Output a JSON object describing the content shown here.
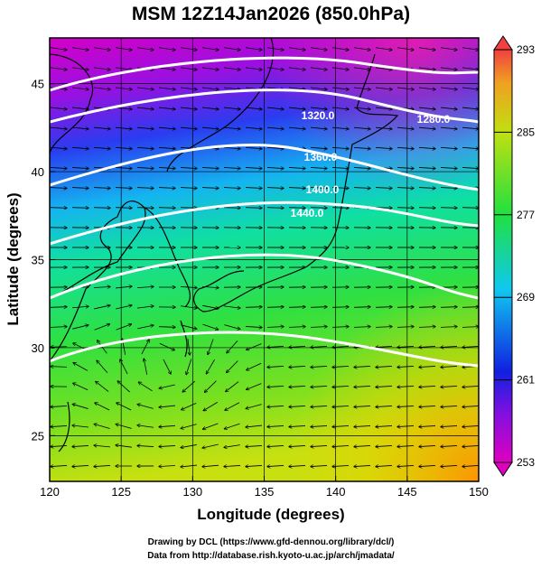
{
  "chart_data": {
    "type": "map",
    "title": "MSM 12Z14Jan2026 (850.0hPa)",
    "x_label": "Longitude (degrees)",
    "y_label": "Latitude  (degrees)",
    "xlim": [
      120,
      150
    ],
    "ylim": [
      22.4,
      47.6
    ],
    "xticks": [
      120,
      125,
      130,
      135,
      140,
      145,
      150
    ],
    "yticks": [
      25,
      30,
      35,
      40,
      45
    ],
    "grid": true,
    "colorbar": {
      "lim": [
        253,
        293
      ],
      "ticks": [
        253,
        261,
        269,
        277,
        285,
        293
      ]
    },
    "contour_labels": [
      "1280.0",
      "1320.0",
      "1360.0",
      "1400.0",
      "1440.0"
    ],
    "credits": [
      "Drawing by DCL (https://www.gfd-dennou.org/library/dcl/)",
      "Data from http://database.rish.kyoto-u.ac.jp/arch/jmadata/"
    ]
  }
}
